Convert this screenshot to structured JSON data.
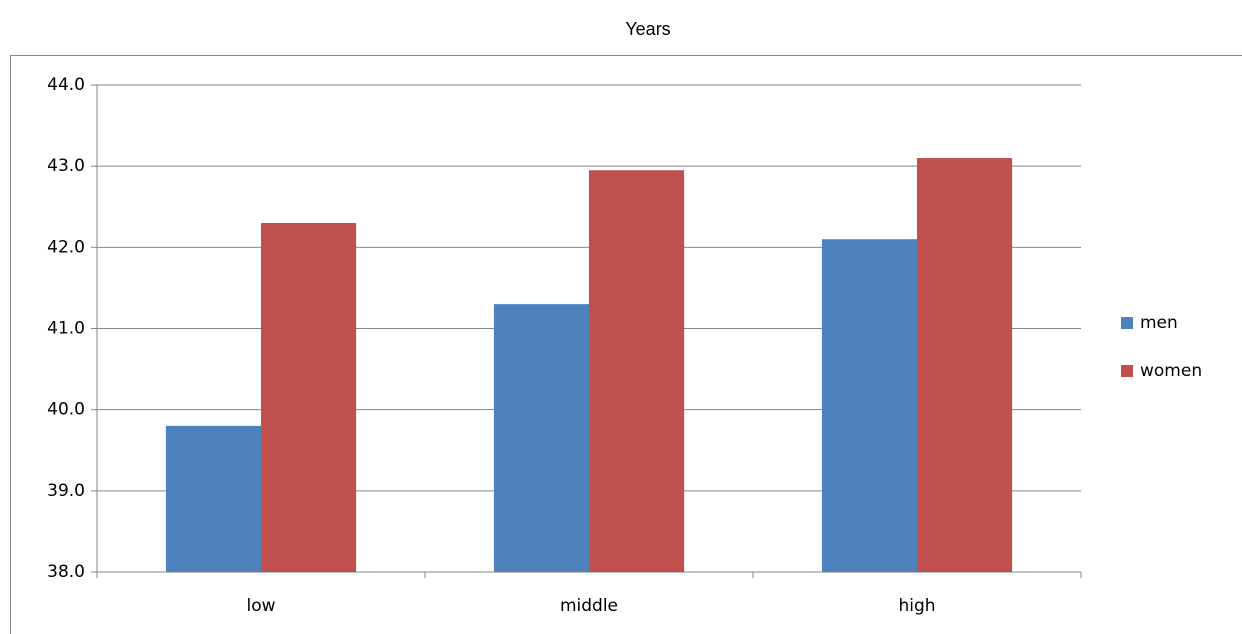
{
  "chart_data": {
    "type": "bar",
    "title": "Years",
    "categories": [
      "low",
      "middle",
      "high"
    ],
    "series": [
      {
        "name": "men",
        "color": "#4f81bd",
        "values": [
          39.8,
          41.3,
          42.1
        ]
      },
      {
        "name": "women",
        "color": "#c0504d",
        "values": [
          42.3,
          42.95,
          43.1
        ]
      }
    ],
    "ylim": [
      38,
      44
    ],
    "yticks": [
      {
        "value": 38,
        "label": "38.0"
      },
      {
        "value": 39,
        "label": "39.0"
      },
      {
        "value": 40,
        "label": "40.0"
      },
      {
        "value": 41,
        "label": "41.0"
      },
      {
        "value": 42,
        "label": "42.0"
      },
      {
        "value": 43,
        "label": "43.0"
      },
      {
        "value": 44,
        "label": "44.0"
      }
    ],
    "grid": true,
    "legend": "right"
  }
}
